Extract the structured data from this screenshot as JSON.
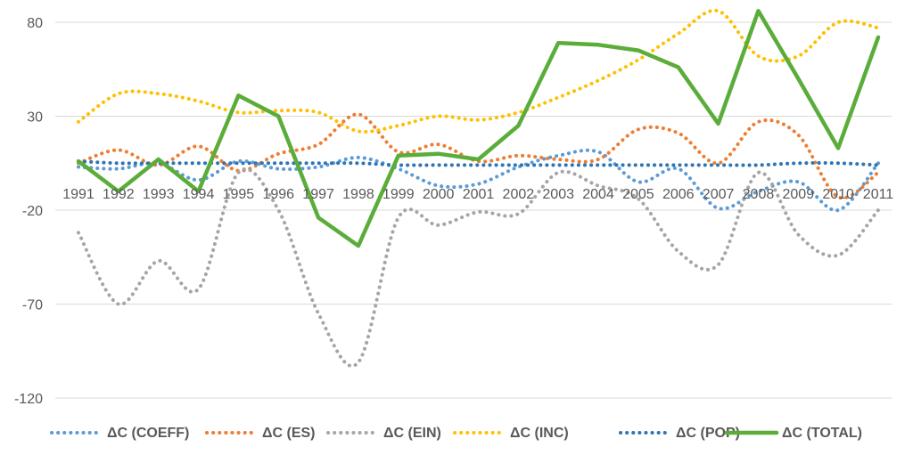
{
  "chart_data": {
    "type": "line",
    "title": "",
    "xlabel": "",
    "ylabel": "",
    "x": [
      "1991",
      "1992",
      "1993",
      "1994",
      "1995",
      "1996",
      "1997",
      "1998",
      "1999",
      "2000",
      "2001",
      "2002",
      "2003",
      "2004",
      "2005",
      "2006",
      "2007",
      "2008",
      "2009",
      "2010",
      "2011"
    ],
    "ylim": [
      -120,
      90
    ],
    "yticks": [
      80,
      30,
      -20,
      -70,
      -120
    ],
    "ytick_labels": [
      "80",
      "30",
      "-20",
      "-70",
      "-120"
    ],
    "grid": "horizontal",
    "legend": "bottom",
    "series": [
      {
        "name": "ΔC (COEFF)",
        "color": "#5B9BD5",
        "style": "dotted",
        "values": [
          3,
          2,
          5,
          -4,
          6,
          2,
          3,
          8,
          2,
          -7,
          -6,
          3,
          9,
          11,
          -5,
          2,
          -19,
          -10,
          -5,
          -20,
          5
        ]
      },
      {
        "name": "ΔC (ES)",
        "color": "#ED7D31",
        "style": "dotted",
        "values": [
          5,
          12,
          4,
          14,
          1,
          10,
          15,
          31,
          11,
          15,
          6,
          9,
          7,
          7,
          23,
          21,
          5,
          27,
          20,
          -13,
          0
        ]
      },
      {
        "name": "ΔC (EIN)",
        "color": "#A5A5A5",
        "style": "dotted",
        "values": [
          -32,
          -70,
          -47,
          -62,
          0,
          -20,
          -75,
          -101,
          -24,
          -28,
          -21,
          -22,
          0,
          -7,
          -14,
          -42,
          -49,
          0,
          -33,
          -44,
          -20
        ]
      },
      {
        "name": "ΔC (INC)",
        "color": "#FFC000",
        "style": "dotted",
        "values": [
          27,
          42,
          42,
          38,
          32,
          33,
          32,
          22,
          25,
          30,
          28,
          32,
          40,
          49,
          60,
          74,
          86,
          62,
          62,
          80,
          77
        ]
      },
      {
        "name": "ΔC (POP)",
        "color": "#2E75B6",
        "style": "dotted",
        "values": [
          6,
          5,
          5,
          5,
          5,
          5,
          5,
          5,
          4,
          4,
          4,
          4,
          4,
          4,
          4,
          4,
          4,
          4,
          5,
          5,
          4
        ]
      },
      {
        "name": "ΔC (TOTAL)",
        "color": "#5BAD3A",
        "style": "solid",
        "values": [
          6,
          -10,
          7,
          -10,
          41,
          30,
          -24,
          -39,
          9,
          10,
          7,
          25,
          69,
          68,
          65,
          56,
          26,
          86,
          50,
          13,
          72
        ]
      }
    ]
  }
}
